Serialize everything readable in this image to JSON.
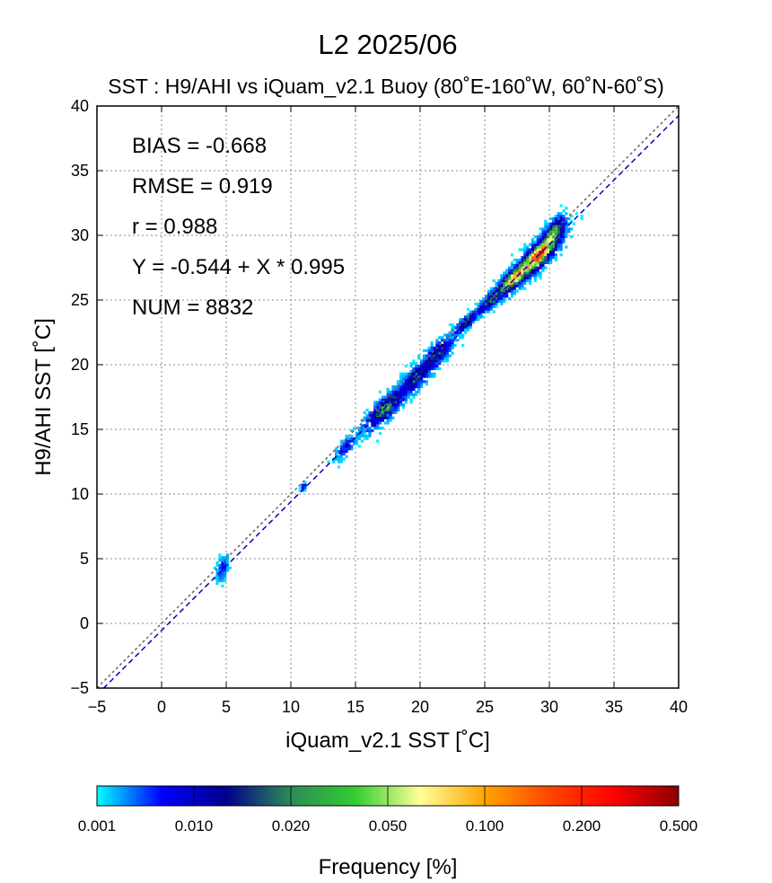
{
  "chart_data": {
    "type": "heatmap",
    "title": "L2  2025/06",
    "subtitle": "SST : H9/AHI vs iQuam_v2.1 Buoy  (80˚E-160˚W, 60˚N-60˚S)",
    "xlabel": "iQuam_v2.1 SST [˚C]",
    "ylabel": "H9/AHI SST [˚C]",
    "xlim": [
      -5,
      40
    ],
    "ylim": [
      -5,
      40
    ],
    "x_ticks": [
      "−5",
      "0",
      "5",
      "10",
      "15",
      "20",
      "25",
      "30",
      "35",
      "40"
    ],
    "y_ticks": [
      "−5",
      "0",
      "5",
      "10",
      "15",
      "20",
      "25",
      "30",
      "35",
      "40"
    ],
    "grid": true,
    "stats": [
      "BIAS = -0.668",
      "RMSE = 0.919",
      "r = 0.988",
      "Y = -0.544 + X * 0.995",
      "NUM = 8832"
    ],
    "regression": {
      "intercept": -0.544,
      "slope": 0.995,
      "color": "#0000cc"
    },
    "identity_line_color": "#666666",
    "clusters": [
      {
        "x": 4.7,
        "y": 4.2,
        "sx": 0.25,
        "sy": 0.9,
        "n": 12,
        "level": 0.6
      },
      {
        "x": 11.0,
        "y": 10.6,
        "sx": 0.1,
        "sy": 0.3,
        "n": 3,
        "level": 0.8
      },
      {
        "x": 14.3,
        "y": 13.7,
        "sx": 0.5,
        "sy": 0.6,
        "n": 10,
        "level": 1.2
      },
      {
        "x": 17.3,
        "y": 16.6,
        "sx": 0.9,
        "sy": 0.9,
        "n": 60,
        "level": 3.0
      },
      {
        "x": 19.7,
        "y": 19.0,
        "sx": 0.8,
        "sy": 0.9,
        "n": 45,
        "level": 2.3
      },
      {
        "x": 21.3,
        "y": 20.8,
        "sx": 0.7,
        "sy": 0.9,
        "n": 40,
        "level": 2.0
      },
      {
        "x": 23.5,
        "y": 23.2,
        "sx": 0.6,
        "sy": 0.5,
        "n": 22,
        "level": 1.8
      },
      {
        "x": 25.6,
        "y": 25.1,
        "sx": 0.6,
        "sy": 0.6,
        "n": 30,
        "level": 2.6
      },
      {
        "x": 27.4,
        "y": 26.8,
        "sx": 0.8,
        "sy": 0.8,
        "n": 110,
        "level": 4.3
      },
      {
        "x": 29.2,
        "y": 28.5,
        "sx": 0.9,
        "sy": 1.0,
        "n": 170,
        "level": 5.2
      },
      {
        "x": 30.3,
        "y": 30.2,
        "sx": 0.5,
        "sy": 0.9,
        "n": 55,
        "level": 3.0
      }
    ],
    "colorbar": {
      "label": "Frequency [%]",
      "tick_labels": [
        "0.001",
        "0.010",
        "0.020",
        "0.050",
        "0.100",
        "0.200",
        "0.500"
      ],
      "stops": [
        "#00ffff",
        "#0000ff",
        "#00008b",
        "#2e8b57",
        "#32cd32",
        "#ffff99",
        "#ffa500",
        "#ff4500",
        "#ff0000",
        "#8b0000"
      ]
    }
  }
}
